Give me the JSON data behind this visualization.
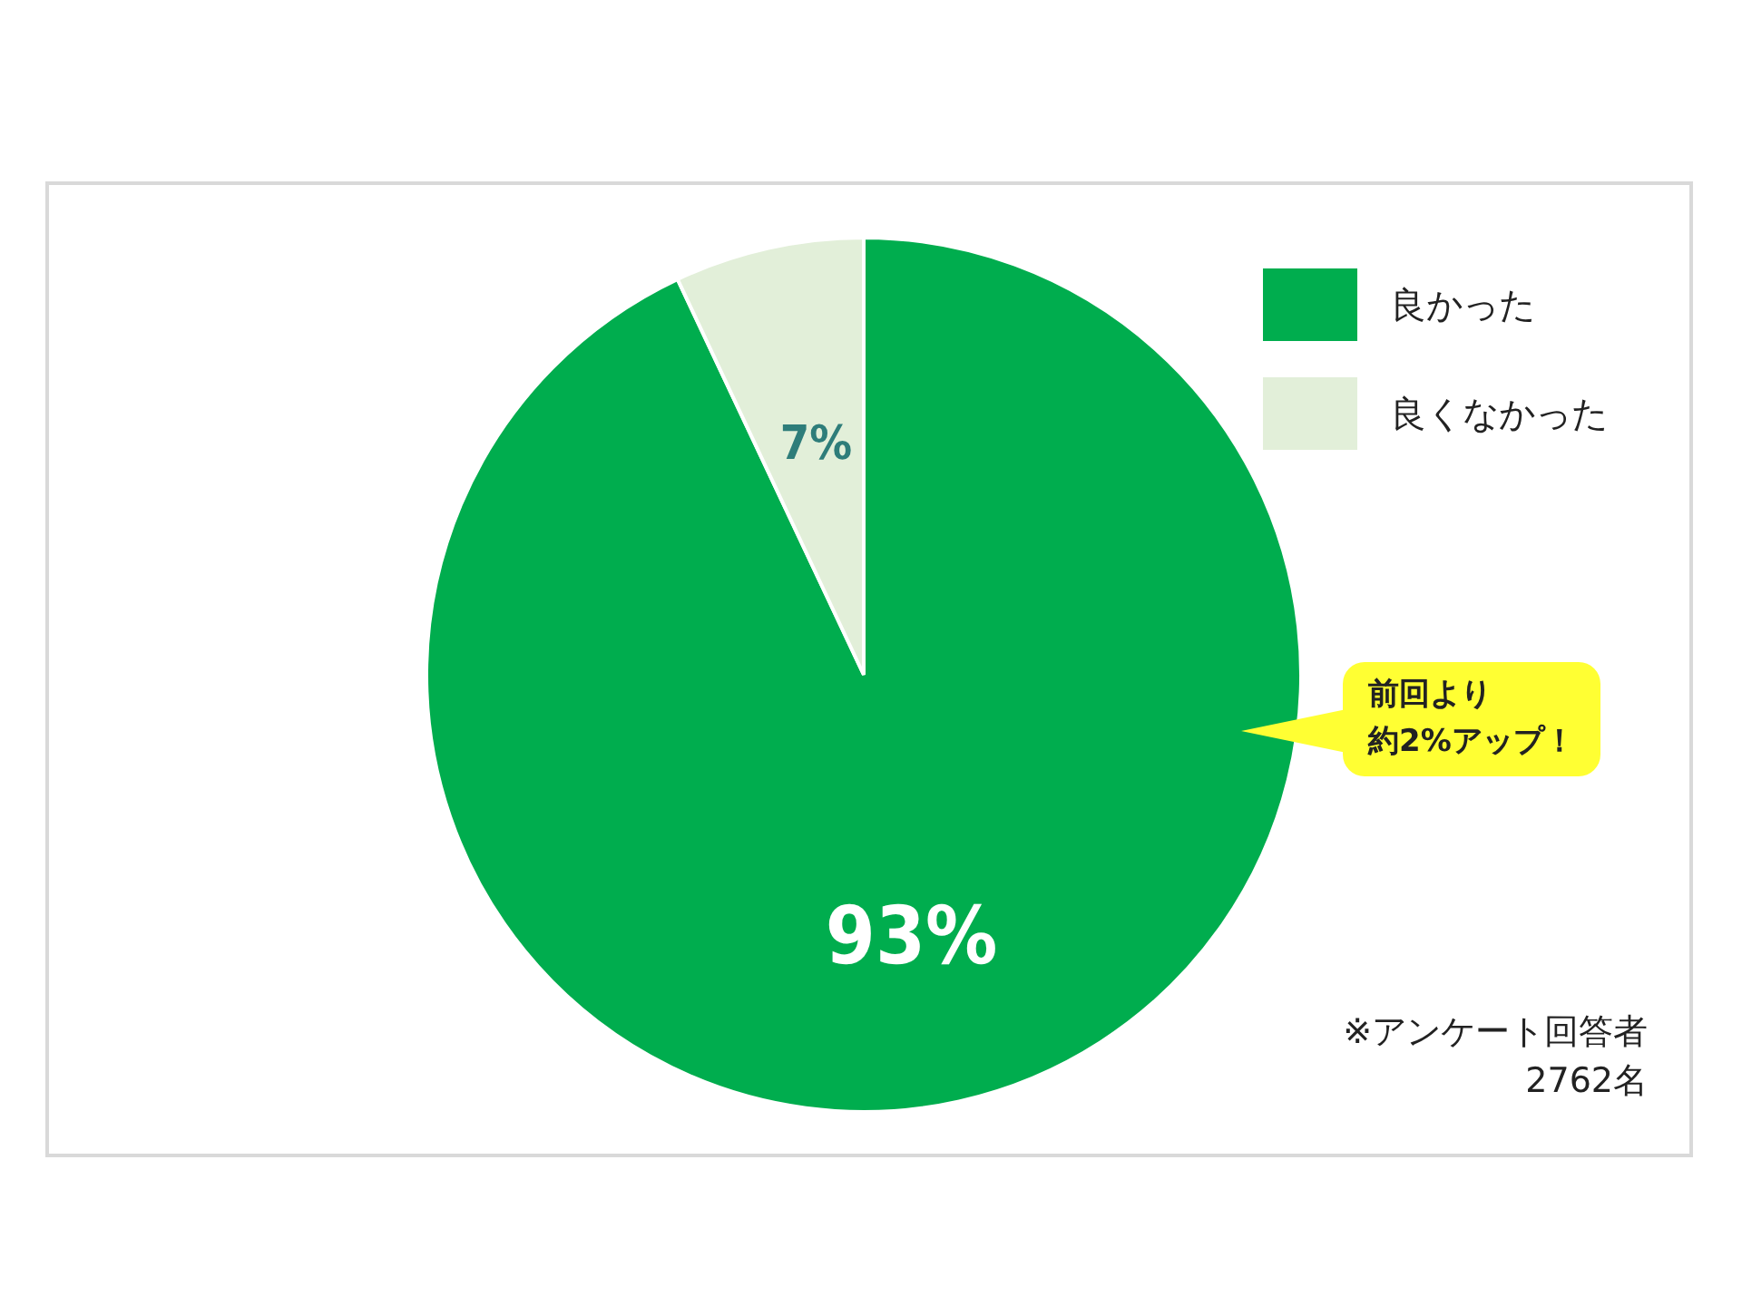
{
  "chart_data": {
    "type": "pie",
    "categories": [
      "良かった",
      "良くなかった"
    ],
    "values": [
      93,
      7
    ],
    "colors": [
      "#00ad4e",
      "#e2efd9"
    ],
    "value_labels": [
      "93%",
      "7%"
    ],
    "legend": "top right",
    "annotations": [
      "前回より",
      "約2%アップ！",
      "※アンケート回答者",
      "2762名"
    ]
  }
}
